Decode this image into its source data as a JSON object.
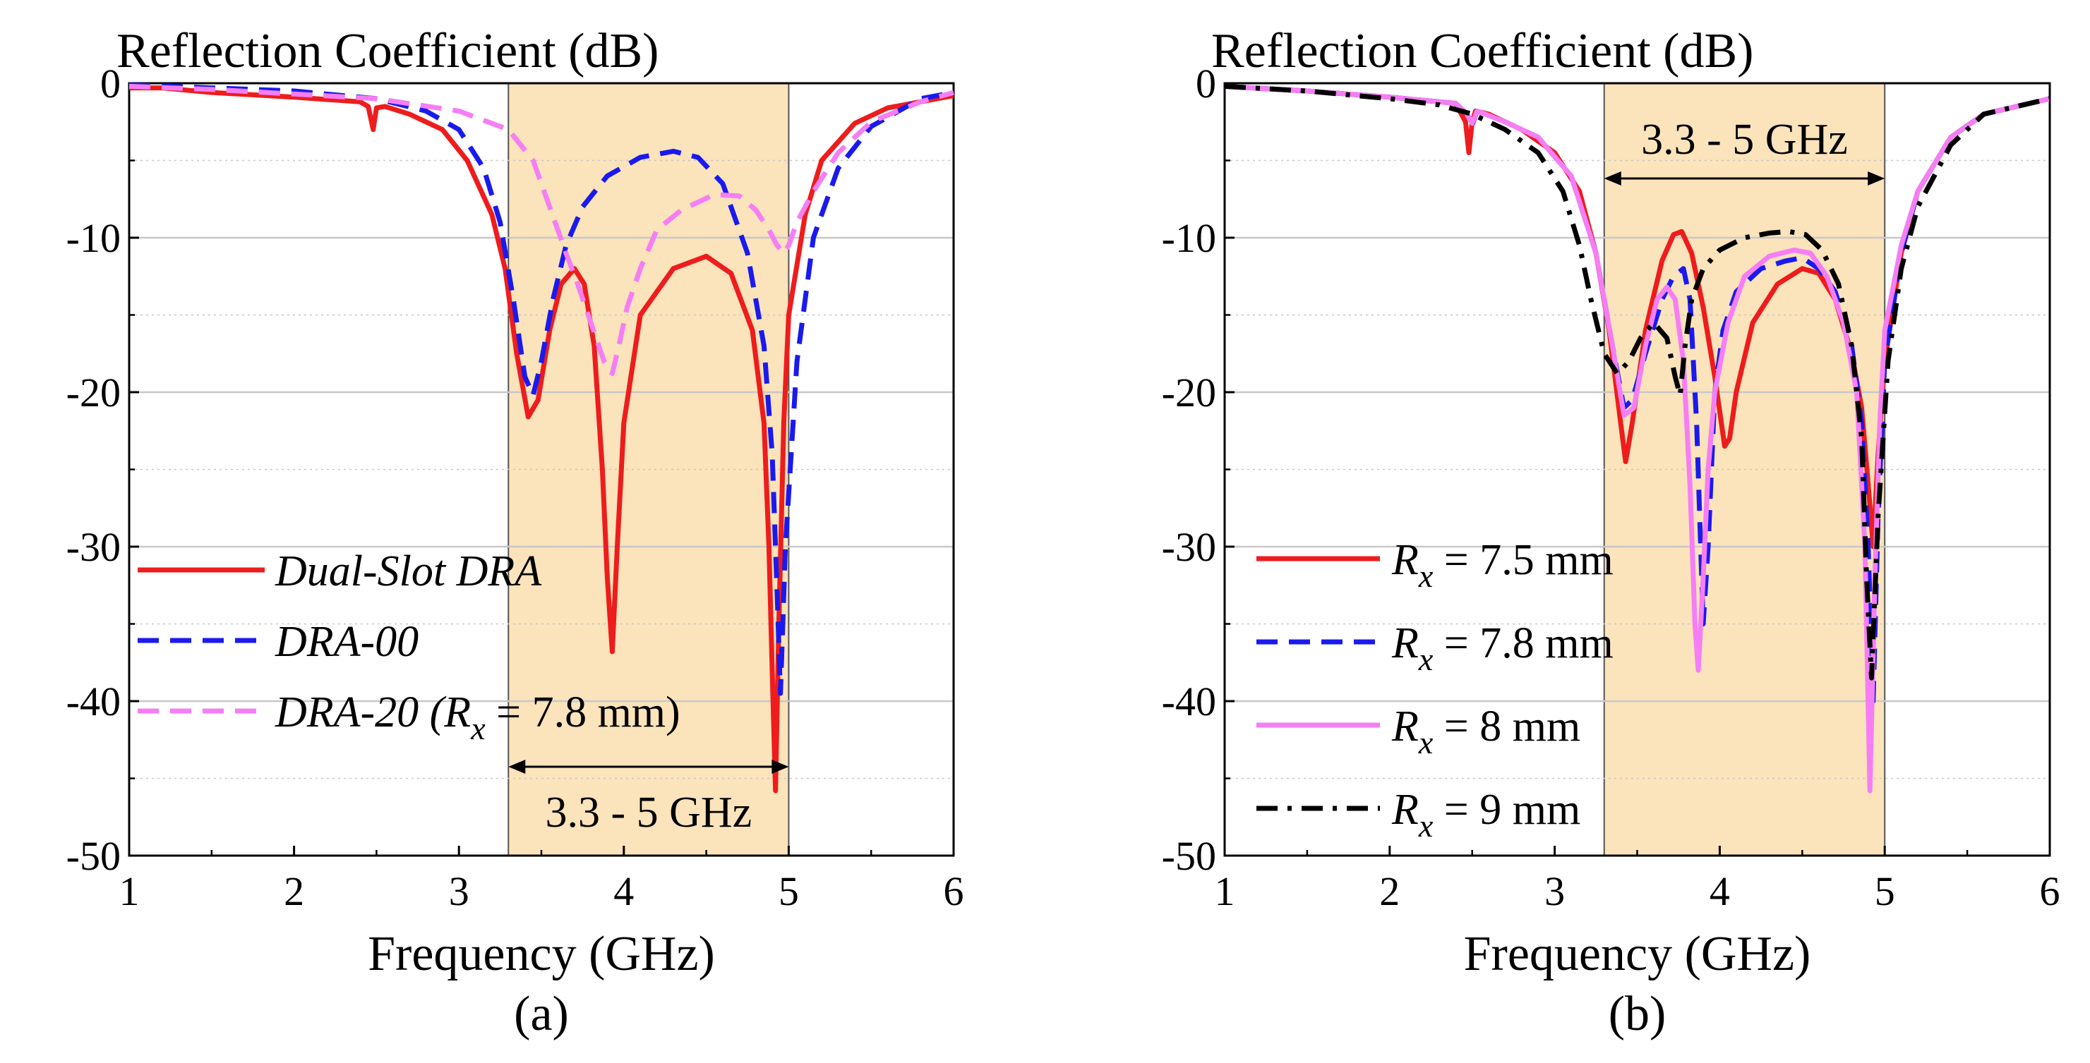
{
  "colors": {
    "band": "#fbe3bb",
    "grid": "#c8c8c8",
    "red": "#ee1c1c",
    "blue": "#1a1aee",
    "pink": "#f57ef5",
    "black": "#000000"
  },
  "chart_data": [
    {
      "type": "line",
      "panel": "(a)",
      "title": "Reflection Coefficient (dB)",
      "xlabel": "Frequency (GHz)",
      "ylabel": "",
      "xlim": [
        1,
        6
      ],
      "ylim": [
        -50,
        0
      ],
      "xticks": [
        "1",
        "2",
        "3",
        "4",
        "5",
        "6"
      ],
      "yticks": [
        "0",
        "-10",
        "-20",
        "-30",
        "-40",
        "-50"
      ],
      "grid": true,
      "band": {
        "from": 3.3,
        "to": 5,
        "label": "3.3 - 5 GHz",
        "label_position": "bottom"
      },
      "legend_position": "bottom-left",
      "series": [
        {
          "name": "Dual-Slot DRA",
          "legend_parts": [
            {
              "t": "Dual-Slot DRA",
              "style": "i"
            }
          ],
          "color": "red",
          "dash": "solid",
          "x": [
            1.0,
            1.2,
            1.5,
            2.0,
            2.4,
            2.45,
            2.48,
            2.5,
            2.55,
            2.7,
            2.9,
            3.05,
            3.2,
            3.28,
            3.35,
            3.42,
            3.48,
            3.55,
            3.62,
            3.7,
            3.76,
            3.82,
            3.87,
            3.9,
            3.93,
            3.96,
            4.0,
            4.1,
            4.3,
            4.5,
            4.65,
            4.78,
            4.85,
            4.88,
            4.9,
            4.92,
            4.94,
            4.97,
            5.0,
            5.1,
            5.2,
            5.4,
            5.6,
            6.0
          ],
          "y": [
            -0.3,
            -0.3,
            -0.6,
            -0.9,
            -1.2,
            -1.5,
            -3.0,
            -1.6,
            -1.5,
            -2.0,
            -3.0,
            -5.0,
            -8.5,
            -12.0,
            -17.5,
            -21.6,
            -20.5,
            -16.0,
            -13.0,
            -12.0,
            -13.0,
            -17.0,
            -25.0,
            -32.0,
            -36.8,
            -30.0,
            -22.0,
            -15.0,
            -12.0,
            -11.2,
            -12.3,
            -16.0,
            -22.0,
            -30.0,
            -38.0,
            -45.8,
            -35.0,
            -22.0,
            -15.0,
            -8.5,
            -5.0,
            -2.6,
            -1.6,
            -0.8
          ]
        },
        {
          "name": "DRA-00",
          "legend_parts": [
            {
              "t": "DRA-00",
              "style": "i"
            }
          ],
          "color": "blue",
          "dash": "dash",
          "x": [
            1.0,
            1.5,
            2.0,
            2.5,
            2.8,
            3.0,
            3.15,
            3.25,
            3.33,
            3.4,
            3.45,
            3.5,
            3.57,
            3.65,
            3.75,
            3.9,
            4.1,
            4.3,
            4.45,
            4.6,
            4.75,
            4.85,
            4.9,
            4.93,
            4.95,
            4.98,
            5.05,
            5.15,
            5.3,
            5.5,
            5.8,
            6.0
          ],
          "y": [
            -0.1,
            -0.3,
            -0.5,
            -1.0,
            -1.8,
            -3.0,
            -5.5,
            -9.0,
            -14.0,
            -19.0,
            -20.2,
            -18.0,
            -14.0,
            -10.5,
            -8.0,
            -6.0,
            -4.8,
            -4.4,
            -4.8,
            -6.5,
            -11.0,
            -17.0,
            -24.0,
            -33.0,
            -39.5,
            -30.0,
            -18.0,
            -10.0,
            -5.5,
            -2.8,
            -1.0,
            -0.6
          ]
        },
        {
          "name": "DRA-20 (Rx = 7.8 mm)",
          "legend_parts": [
            {
              "t": "DRA-20 (R",
              "style": "i"
            },
            {
              "t": "x",
              "style": "sub"
            },
            {
              "t": " = 7.8 mm)",
              "style": "n"
            }
          ],
          "color": "pink",
          "dash": "dash",
          "x": [
            1.0,
            1.5,
            2.0,
            2.5,
            3.0,
            3.3,
            3.45,
            3.55,
            3.65,
            3.72,
            3.8,
            3.88,
            3.93,
            3.97,
            4.02,
            4.1,
            4.2,
            4.35,
            4.55,
            4.7,
            4.8,
            4.88,
            4.93,
            4.97,
            5.0,
            5.05,
            5.15,
            5.3,
            5.5,
            5.8,
            6.0
          ],
          "y": [
            -0.2,
            -0.4,
            -0.7,
            -1.0,
            -1.8,
            -3.0,
            -5.0,
            -8.0,
            -11.0,
            -13.0,
            -15.5,
            -18.0,
            -18.8,
            -17.0,
            -14.5,
            -12.0,
            -9.5,
            -8.2,
            -7.2,
            -7.3,
            -8.2,
            -9.5,
            -10.5,
            -11.0,
            -10.5,
            -9.0,
            -7.0,
            -4.5,
            -2.5,
            -1.2,
            -0.6
          ]
        }
      ]
    },
    {
      "type": "line",
      "panel": "(b)",
      "title": "Reflection Coefficient (dB)",
      "xlabel": "Frequency (GHz)",
      "ylabel": "",
      "xlim": [
        1,
        6
      ],
      "ylim": [
        -50,
        0
      ],
      "xticks": [
        "1",
        "2",
        "3",
        "4",
        "5",
        "6"
      ],
      "yticks": [
        "0",
        "-10",
        "-20",
        "-30",
        "-40",
        "-50"
      ],
      "grid": true,
      "band": {
        "from": 3.3,
        "to": 5,
        "label": "3.3 - 5 GHz",
        "label_position": "top"
      },
      "legend_position": "bottom-left",
      "series": [
        {
          "name": "Rx = 7.5 mm",
          "legend_parts": [
            {
              "t": "R",
              "style": "i"
            },
            {
              "t": "x",
              "style": "sub"
            },
            {
              "t": " = 7.5 mm",
              "style": "n"
            }
          ],
          "color": "red",
          "dash": "solid",
          "x": [
            1.0,
            1.5,
            2.0,
            2.4,
            2.46,
            2.48,
            2.5,
            2.52,
            2.6,
            2.8,
            3.0,
            3.15,
            3.25,
            3.33,
            3.4,
            3.43,
            3.47,
            3.55,
            3.65,
            3.72,
            3.77,
            3.83,
            3.9,
            3.97,
            4.03,
            4.06,
            4.1,
            4.2,
            4.35,
            4.5,
            4.6,
            4.7,
            4.8,
            4.86,
            4.9,
            4.93,
            4.96,
            5.0,
            5.1,
            5.2,
            5.4,
            5.6,
            6.0
          ],
          "y": [
            -0.2,
            -0.5,
            -0.9,
            -1.3,
            -2.5,
            -4.5,
            -2.5,
            -1.8,
            -2.0,
            -3.0,
            -4.5,
            -7.0,
            -11.0,
            -16.0,
            -22.0,
            -24.5,
            -22.0,
            -16.0,
            -11.5,
            -9.8,
            -9.6,
            -11.0,
            -14.5,
            -19.0,
            -23.5,
            -23.0,
            -20.0,
            -15.5,
            -13.0,
            -12.0,
            -12.3,
            -14.0,
            -17.5,
            -21.0,
            -26.0,
            -30.0,
            -24.0,
            -18.0,
            -11.0,
            -7.0,
            -3.5,
            -2.0,
            -1.0
          ]
        },
        {
          "name": "Rx = 7.8 mm",
          "legend_parts": [
            {
              "t": "R",
              "style": "i"
            },
            {
              "t": "x",
              "style": "sub"
            },
            {
              "t": " = 7.8 mm",
              "style": "n"
            }
          ],
          "color": "blue",
          "dash": "dash",
          "x": [
            1.0,
            1.5,
            2.0,
            2.4,
            2.47,
            2.5,
            2.53,
            2.7,
            2.9,
            3.1,
            3.25,
            3.35,
            3.42,
            3.47,
            3.55,
            3.65,
            3.72,
            3.78,
            3.82,
            3.86,
            3.9,
            3.93,
            3.97,
            4.02,
            4.1,
            4.25,
            4.4,
            4.5,
            4.6,
            4.7,
            4.8,
            4.86,
            4.9,
            4.93,
            4.96,
            5.0,
            5.1,
            5.2,
            5.4,
            5.6,
            6.0
          ],
          "y": [
            -0.2,
            -0.5,
            -0.9,
            -1.3,
            -2.0,
            -2.7,
            -1.8,
            -2.5,
            -3.5,
            -6.0,
            -11.0,
            -17.0,
            -21.0,
            -20.5,
            -17.5,
            -14.0,
            -12.5,
            -12.0,
            -14.0,
            -22.0,
            -35.0,
            -30.0,
            -20.0,
            -16.0,
            -13.5,
            -12.0,
            -11.5,
            -11.3,
            -12.0,
            -13.5,
            -17.0,
            -22.0,
            -30.0,
            -40.0,
            -28.0,
            -18.0,
            -11.0,
            -7.0,
            -3.5,
            -2.0,
            -1.0
          ]
        },
        {
          "name": "Rx = 8 mm",
          "legend_parts": [
            {
              "t": "R",
              "style": "i"
            },
            {
              "t": "x",
              "style": "sub"
            },
            {
              "t": " = 8 mm",
              "style": "n"
            }
          ],
          "color": "pink",
          "dash": "solid",
          "x": [
            1.0,
            1.5,
            2.0,
            2.4,
            2.47,
            2.5,
            2.53,
            2.7,
            2.9,
            3.1,
            3.25,
            3.35,
            3.42,
            3.48,
            3.55,
            3.62,
            3.68,
            3.73,
            3.78,
            3.82,
            3.85,
            3.87,
            3.9,
            3.93,
            3.97,
            4.05,
            4.15,
            4.3,
            4.45,
            4.55,
            4.65,
            4.75,
            4.83,
            4.88,
            4.91,
            4.94,
            4.97,
            5.0,
            5.1,
            5.2,
            5.4,
            5.6,
            6.0
          ],
          "y": [
            -0.2,
            -0.5,
            -0.9,
            -1.3,
            -2.0,
            -2.6,
            -1.8,
            -2.5,
            -3.5,
            -6.0,
            -11.0,
            -17.0,
            -21.5,
            -21.0,
            -17.0,
            -14.0,
            -13.2,
            -14.0,
            -18.0,
            -26.0,
            -35.0,
            -38.0,
            -32.0,
            -25.0,
            -20.0,
            -15.5,
            -12.5,
            -11.2,
            -10.8,
            -11.0,
            -12.5,
            -15.5,
            -20.0,
            -30.0,
            -45.8,
            -32.0,
            -22.0,
            -16.0,
            -10.5,
            -7.0,
            -3.5,
            -2.0,
            -1.0
          ]
        },
        {
          "name": "Rx = 9 mm",
          "legend_parts": [
            {
              "t": "R",
              "style": "i"
            },
            {
              "t": "x",
              "style": "sub"
            },
            {
              "t": " = 9 mm",
              "style": "n"
            }
          ],
          "color": "black",
          "dash": "dashdot",
          "x": [
            1.0,
            1.5,
            2.0,
            2.3,
            2.5,
            2.7,
            2.9,
            3.05,
            3.15,
            3.22,
            3.3,
            3.38,
            3.45,
            3.52,
            3.6,
            3.68,
            3.73,
            3.76,
            3.79,
            3.83,
            3.9,
            4.0,
            4.15,
            4.3,
            4.42,
            4.52,
            4.62,
            4.72,
            4.8,
            4.86,
            4.89,
            4.92,
            4.96,
            5.02,
            5.1,
            5.2,
            5.4,
            5.6,
            6.0
          ],
          "y": [
            -0.2,
            -0.5,
            -1.0,
            -1.4,
            -2.0,
            -3.0,
            -4.5,
            -7.0,
            -10.5,
            -14.0,
            -17.5,
            -18.8,
            -18.0,
            -16.5,
            -15.5,
            -16.5,
            -19.0,
            -20.2,
            -17.0,
            -14.0,
            -12.0,
            -10.8,
            -10.0,
            -9.7,
            -9.6,
            -9.8,
            -10.8,
            -13.0,
            -17.0,
            -23.0,
            -32.0,
            -38.5,
            -28.0,
            -18.0,
            -12.0,
            -8.0,
            -4.0,
            -2.0,
            -1.0
          ]
        }
      ]
    }
  ]
}
